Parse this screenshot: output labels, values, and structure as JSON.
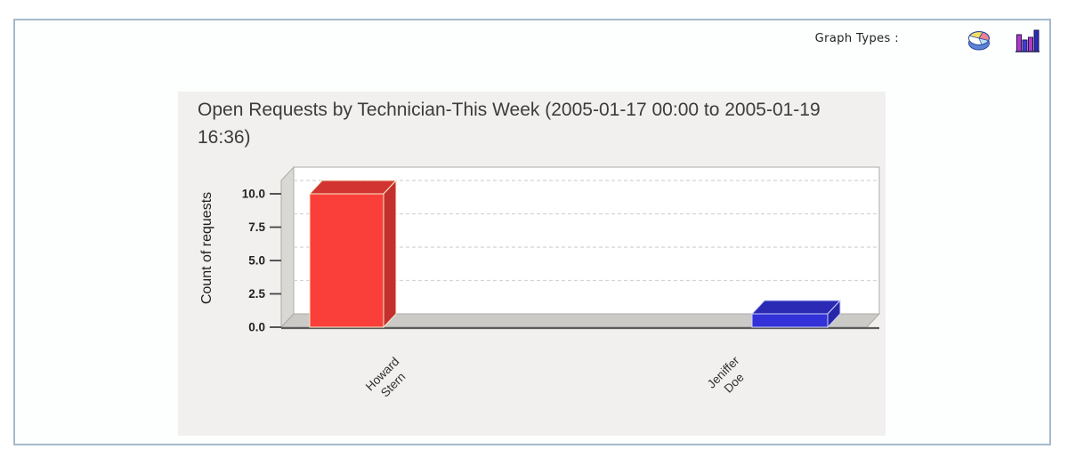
{
  "header": {
    "graph_types_label": "Graph Types :",
    "icons": [
      {
        "name": "pie-chart-icon"
      },
      {
        "name": "bar-chart-icon"
      }
    ]
  },
  "chart_data": {
    "type": "bar",
    "style": "3d",
    "title": "Open Requests by Technician-This Week (2005-01-17 00:00 to 2005-01-19 16:36)",
    "xlabel": "",
    "ylabel": "Count of requests",
    "categories": [
      "Howard Stern",
      "Jeniffer Doe"
    ],
    "category_lines": [
      [
        "Howard",
        "Stern"
      ],
      [
        "Jeniffer",
        "Doe"
      ]
    ],
    "values": [
      10,
      1
    ],
    "bar_colors": [
      "#fa3e3a",
      "#3232d8"
    ],
    "bar_edge_colors": [
      "#f6eccb",
      "#cdd2f5"
    ],
    "yticks": [
      0,
      2.5,
      5,
      7.5,
      10
    ],
    "ytick_labels": [
      "0.0",
      "2.5",
      "5.0",
      "7.5",
      "10.0"
    ],
    "ylim": [
      0,
      11
    ],
    "grid": "horizontal-dashed",
    "legend": "none"
  },
  "colors": {
    "frame_border": "#a4bacb",
    "panel_bg": "#f1f0ee",
    "back_wall": "#ffffff",
    "side_wall": "#d9d8d5",
    "floor": "#cbcac7",
    "wall_outline": "#ababa8",
    "grid_line": "#d4d4d2",
    "axis_line": "#5a5a5a",
    "tick_text": "#222222",
    "label_text": "#2f2f2f",
    "title_text": "#3c3c3c"
  }
}
